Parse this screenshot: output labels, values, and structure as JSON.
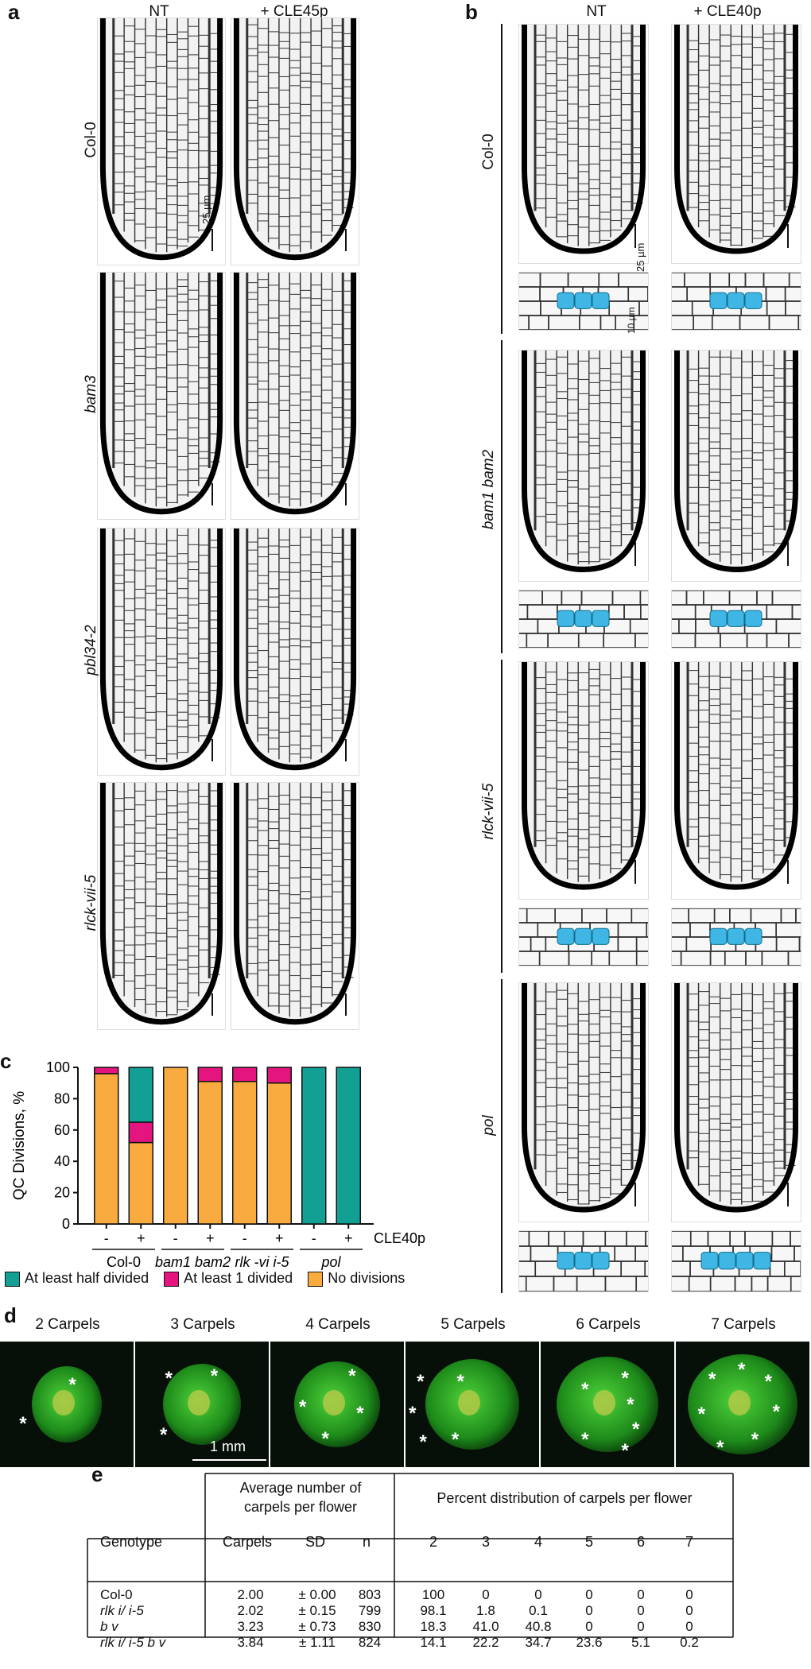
{
  "panels": {
    "a": {
      "label": "a",
      "columns": [
        "NT",
        "+ CLE45p"
      ],
      "rows": [
        "Col-0",
        "bam3",
        "pbl34-2",
        "rlck-vii-5"
      ],
      "scale_label": "25 µm"
    },
    "b": {
      "label": "b",
      "columns": [
        "NT",
        "+ CLE40p"
      ],
      "rows": [
        "Col-0",
        "bam1 bam2",
        "rlck-vii-5",
        "pol"
      ],
      "scale_label_large": "25 µm",
      "scale_label_small": "10 µm",
      "qc_color": "#3fb6e3"
    },
    "c": {
      "label": "c",
      "treatment_label": "CLE40p",
      "genotype_groups": [
        "Col-0",
        "bam1 bam2",
        "rlk -vi i-5",
        "pol"
      ],
      "treatment_marks": [
        "-",
        "+",
        "-",
        "+",
        "-",
        "+",
        "-",
        "+"
      ]
    },
    "d": {
      "label": "d",
      "titles": [
        "2 Carpels",
        "3 Carpels",
        "4 Carpels",
        "5 Carpels",
        "6 Carpels",
        "7 Carpels"
      ],
      "scale_label": "1 mm",
      "star_glyph": "*"
    },
    "e": {
      "label": "e",
      "header_avg": "Average number of carpels per flower",
      "header_pct": "Percent distribution of carpels per flower",
      "col_genotype": "Genotype",
      "col_carpels": "Carpels",
      "col_sd": "SD",
      "col_n": "n",
      "pct_cols": [
        "2",
        "3",
        "4",
        "5",
        "6",
        "7"
      ],
      "rows": [
        {
          "genotype": "Col-0",
          "carpels": "2.00",
          "sd": "± 0.00",
          "n": "803",
          "pct": [
            "100",
            "0",
            "0",
            "0",
            "0",
            "0"
          ]
        },
        {
          "genotype": "rlk  i/ i-5",
          "carpels": "2.02",
          "sd": "± 0.15",
          "n": "799",
          "pct": [
            "98.1",
            "1.8",
            "0.1",
            "0",
            "0",
            "0"
          ]
        },
        {
          "genotype": "b v",
          "carpels": "3.23",
          "sd": "± 0.73",
          "n": "830",
          "pct": [
            "18.3",
            "41.0",
            "40.8",
            "0",
            "0",
            "0"
          ]
        },
        {
          "genotype": "rlk  i/ i-5 b v",
          "carpels": "3.84",
          "sd": "± 1.11",
          "n": "824",
          "pct": [
            "14.1",
            "22.2",
            "34.7",
            "23.6",
            "5.1",
            "0.2"
          ]
        }
      ]
    }
  },
  "chart_data": {
    "type": "bar",
    "stacked": true,
    "ylabel": "QC Divisions, %",
    "ylim": [
      0,
      100
    ],
    "yticks": [
      0,
      20,
      40,
      60,
      80,
      100
    ],
    "categories": [
      "-",
      "+",
      "-",
      "+",
      "-",
      "+",
      "-",
      "+"
    ],
    "series": [
      {
        "name": "No divisions",
        "color": "#f9ab40",
        "values": [
          96,
          52,
          100,
          91,
          91,
          90,
          0,
          0
        ]
      },
      {
        "name": "At least 1 divided",
        "color": "#e4157e",
        "values": [
          4,
          13,
          0,
          9,
          9,
          10,
          0,
          0
        ]
      },
      {
        "name": "At least half divided",
        "color": "#13a094",
        "values": [
          0,
          35,
          0,
          0,
          0,
          0,
          100,
          100
        ]
      }
    ],
    "legend": [
      "At least half divided",
      "At least 1 divided",
      "No divisions"
    ],
    "legend_position": "bottom"
  }
}
